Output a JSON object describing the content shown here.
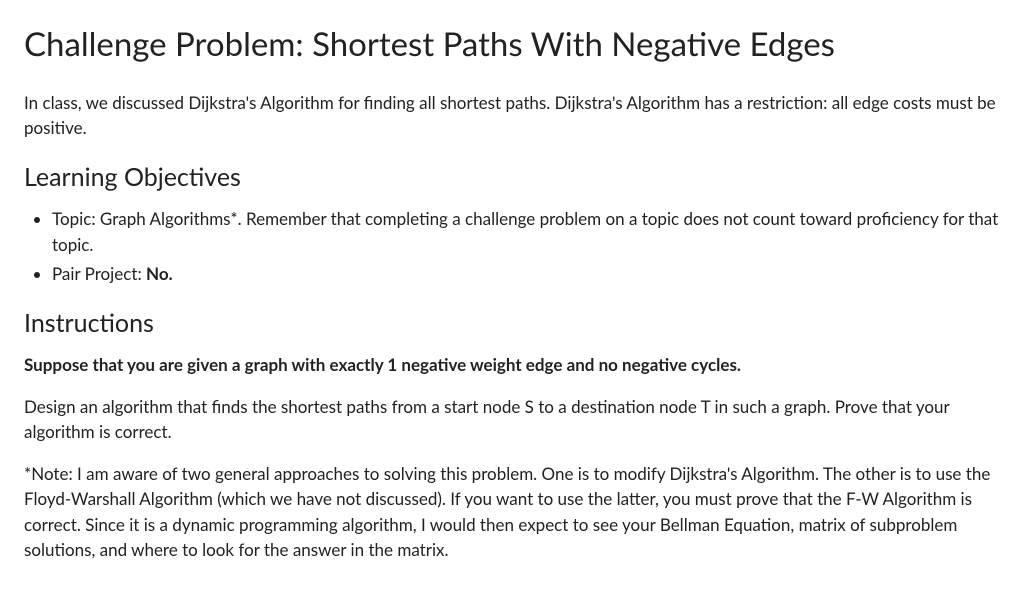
{
  "page_title": "Challenge Problem: Shortest Paths With Negative Edges",
  "intro_paragraph": "In class, we discussed Dijkstra's Algorithm for finding all shortest paths. Dijkstra's Algorithm has a restriction: all edge costs must be positive.",
  "learning_objectives": {
    "heading": "Learning Objectives",
    "items": [
      {
        "prefix": "Topic: Graph Algorithms*. Remember that completing a challenge problem on a topic does not count toward proficiency for that topic.",
        "bold_suffix": ""
      },
      {
        "prefix": "Pair Project: ",
        "bold_suffix": "No."
      }
    ]
  },
  "instructions": {
    "heading": "Instructions",
    "bold_statement": "Suppose that you are given a graph with exactly 1 negative weight edge and no negative cycles.",
    "paragraph1": "Design an algorithm that finds the shortest paths from a start node S to a destination node T in such a graph. Prove that your algorithm is correct.",
    "paragraph2": "*Note: I am aware of two general approaches to solving this problem. One is to modify Dijkstra's Algorithm. The other is to use the Floyd-Warshall Algorithm (which we have not discussed). If you want to use the latter, you must prove that the F-W Algorithm is correct. Since it is a dynamic programming algorithm, I would then expect to see your Bellman Equation, matrix of subproblem solutions, and where to look for the answer in the matrix."
  }
}
